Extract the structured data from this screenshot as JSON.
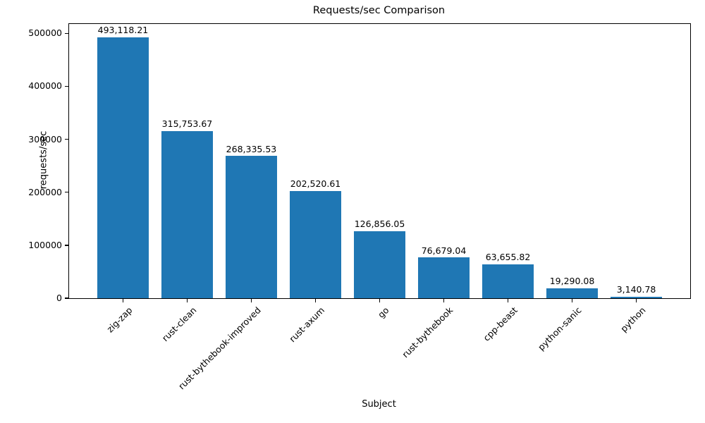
{
  "chart_data": {
    "type": "bar",
    "title": "Requests/sec Comparison",
    "xlabel": "Subject",
    "ylabel": "requests/sec",
    "categories": [
      "zig-zap",
      "rust-clean",
      "rust-bythebook-improved",
      "rust-axum",
      "go",
      "rust-bythebook",
      "cpp-beast",
      "python-sanic",
      "python"
    ],
    "values": [
      493118.21,
      315753.67,
      268335.53,
      202520.61,
      126856.05,
      76679.04,
      63655.82,
      19290.08,
      3140.78
    ],
    "value_labels": [
      "493,118.21",
      "315,753.67",
      "268,335.53",
      "202,520.61",
      "126,856.05",
      "76,679.04",
      "63,655.82",
      "19,290.08",
      "3,140.78"
    ],
    "yticks": [
      0,
      100000,
      200000,
      300000,
      400000,
      500000
    ],
    "ytick_labels": [
      "0",
      "100000",
      "200000",
      "300000",
      "400000",
      "500000"
    ],
    "ylim": [
      0,
      517774
    ],
    "bar_color": "#1f77b4",
    "grid": false,
    "legend": null,
    "x_tick_rotation_deg": 45
  }
}
